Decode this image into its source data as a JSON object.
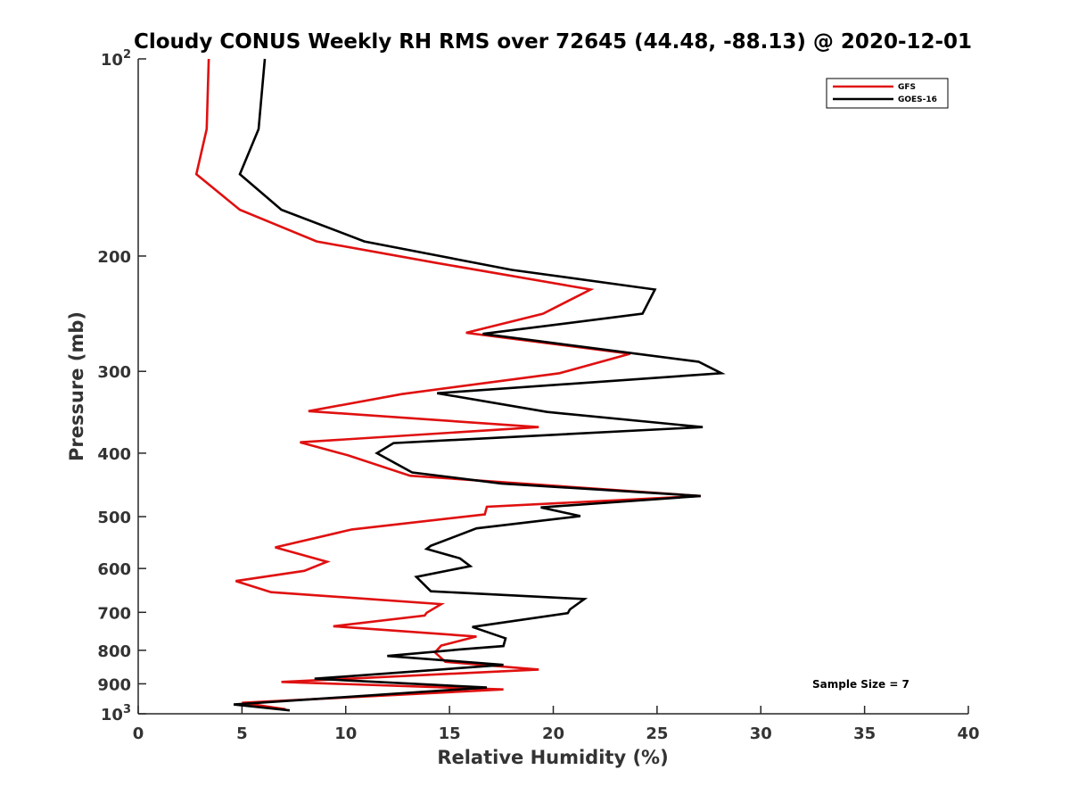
{
  "chart_data": {
    "type": "line",
    "title": "Cloudy CONUS Weekly RH RMS over 72645 (44.48, -88.13) @ 2020-12-01",
    "xlabel": "Relative Humidity (%)",
    "ylabel": "Pressure (mb)",
    "xlim": [
      0,
      40
    ],
    "ylim": [
      100,
      1000
    ],
    "y_scale": "log",
    "y_reversed": true,
    "x_ticks": [
      "0",
      "5",
      "10",
      "15",
      "20",
      "25",
      "30",
      "35",
      "40"
    ],
    "y_ticks": [
      {
        "value": 100,
        "label": "10",
        "sup": "2"
      },
      {
        "value": 200,
        "label": "200"
      },
      {
        "value": 300,
        "label": "300"
      },
      {
        "value": 400,
        "label": "400"
      },
      {
        "value": 500,
        "label": "500"
      },
      {
        "value": 600,
        "label": "600"
      },
      {
        "value": 700,
        "label": "700"
      },
      {
        "value": 800,
        "label": "800"
      },
      {
        "value": 900,
        "label": "900"
      },
      {
        "value": 1000,
        "label": "10",
        "sup": "3"
      }
    ],
    "grid": false,
    "legend_position": "top-right",
    "annotation": "Sample Size = 7",
    "series": [
      {
        "name": "GFS",
        "color": "#e01010",
        "x": [
          3.4,
          3.3,
          2.8,
          4.9,
          8.6,
          14.4,
          21.8,
          19.5,
          15.8,
          23.7,
          20.3,
          12.7,
          8.2,
          19.3,
          7.8,
          10.1,
          13.1,
          27.1,
          16.8,
          16.7,
          10.3,
          6.6,
          9.1,
          8.0,
          4.7,
          6.4,
          14.6,
          13.9,
          13.8,
          9.4,
          16.3,
          14.6,
          14.3,
          14.8,
          19.3,
          6.9,
          17.6,
          5.0,
          7.1
        ],
        "y": [
          100,
          128,
          150,
          170,
          190,
          205,
          225,
          245,
          262,
          282,
          302,
          325,
          345,
          365,
          385,
          403,
          433,
          465,
          483,
          496,
          523,
          557,
          586,
          605,
          627,
          652,
          680,
          701,
          708,
          735,
          762,
          787,
          806,
          833,
          856,
          894,
          918,
          962,
          984
        ]
      },
      {
        "name": "GOES-16",
        "color": "#000000",
        "x": [
          6.1,
          5.8,
          4.9,
          6.9,
          10.9,
          18.0,
          24.9,
          24.3,
          16.6,
          27.0,
          28.1,
          14.4,
          19.7,
          27.2,
          12.3,
          11.5,
          13.2,
          17.5,
          27.1,
          19.4,
          21.3,
          16.3,
          14.1,
          13.9,
          15.5,
          16.0,
          13.4,
          14.1,
          21.5,
          20.8,
          20.7,
          16.1,
          17.7,
          17.6,
          15.6,
          12.0,
          17.6,
          8.5,
          16.8,
          4.6,
          7.3
        ],
        "y": [
          100,
          128,
          150,
          170,
          190,
          210,
          225,
          245,
          263,
          290,
          302,
          324,
          346,
          365,
          386,
          400,
          428,
          445,
          465,
          484,
          499,
          521,
          554,
          560,
          579,
          595,
          618,
          650,
          668,
          693,
          702,
          737,
          767,
          788,
          797,
          816,
          842,
          884,
          912,
          968,
          988
        ]
      }
    ]
  }
}
